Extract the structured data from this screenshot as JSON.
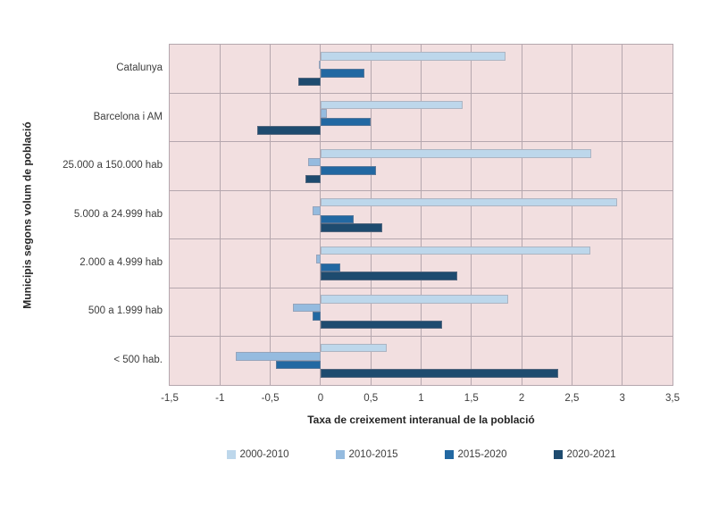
{
  "chart_data": {
    "type": "bar",
    "orientation": "horizontal",
    "title": "",
    "xlabel": "Taxa de creixement interanual de la població",
    "ylabel": "Municipis segons volum de població",
    "categories": [
      "Catalunya",
      "Barcelona i AM",
      "25.000 a 150.000 hab",
      "5.000 a 24.999 hab",
      "2.000 a 4.999 hab",
      "500 a 1.999 hab",
      "< 500 hab."
    ],
    "series": [
      {
        "name": "2000-2010",
        "color": "#bdd7eb",
        "values": [
          1.84,
          1.41,
          2.69,
          2.95,
          2.68,
          1.87,
          0.66
        ]
      },
      {
        "name": "2010-2015",
        "color": "#95bbdf",
        "values": [
          -0.02,
          0.06,
          -0.12,
          -0.08,
          -0.04,
          -0.27,
          -0.84
        ]
      },
      {
        "name": "2015-2020",
        "color": "#2268a2",
        "values": [
          0.44,
          0.5,
          0.55,
          0.33,
          0.2,
          -0.08,
          -0.44
        ]
      },
      {
        "name": "2020-2021",
        "color": "#1e4b6f",
        "values": [
          -0.22,
          -0.63,
          -0.15,
          0.61,
          1.36,
          1.21,
          2.36
        ]
      }
    ],
    "xlim": [
      -1.5,
      3.5
    ],
    "x_ticks": [
      "-1,5",
      "-1",
      "-0,5",
      "0",
      "0,5",
      "1",
      "1,5",
      "2",
      "2,5",
      "3",
      "3,5"
    ],
    "x_tick_values": [
      -1.5,
      -1,
      -0.5,
      0,
      0.5,
      1,
      1.5,
      2,
      2.5,
      3,
      3.5
    ],
    "grid": true,
    "legend_position": "bottom",
    "plot_bg": "#f2dfe0",
    "gridline_color": "#b5a7ae"
  }
}
